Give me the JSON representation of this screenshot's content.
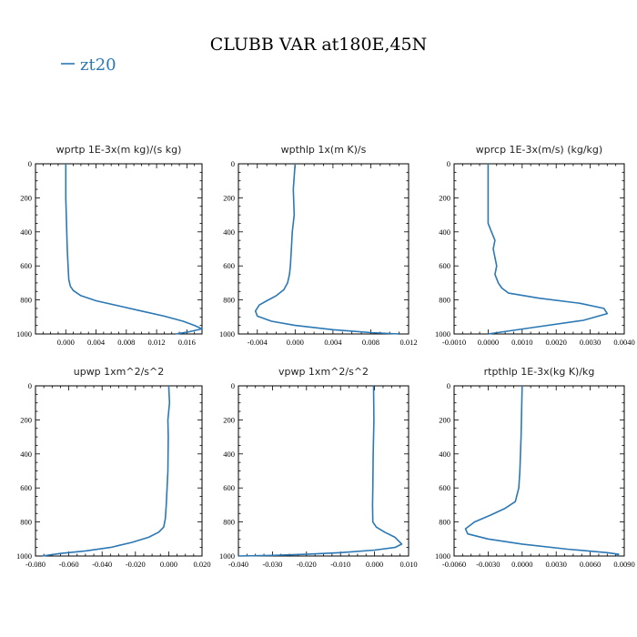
{
  "figure": {
    "title": "CLUBB VAR at180E,45N",
    "legend": [
      {
        "name": "zt20",
        "color": "#2b78b4"
      }
    ]
  },
  "chart_data": [
    {
      "type": "line",
      "title": "wprtp  1E-3x(m kg)/(s kg)",
      "xlim": [
        -0.004,
        0.018
      ],
      "xticks": [
        0.0,
        0.004,
        0.008,
        0.012,
        0.016
      ],
      "xtick_labels": [
        "0.000",
        "0.004",
        "0.008",
        "0.012",
        "0.016"
      ],
      "ylim": [
        1000,
        0
      ],
      "yticks": [
        0,
        200,
        400,
        600,
        800,
        1000
      ],
      "ytick_labels": [
        "0",
        "200",
        "400",
        "600",
        "800",
        "1000"
      ],
      "series": [
        {
          "name": "zt20",
          "color": "#2b78b4",
          "x": [
            0.0,
            0.0,
            0.0001,
            0.0002,
            0.0003,
            0.0004,
            0.0006,
            0.001,
            0.002,
            0.004,
            0.007,
            0.01,
            0.013,
            0.0155,
            0.017,
            0.018,
            0.016,
            0.0145
          ],
          "y": [
            0,
            200,
            350,
            500,
            600,
            680,
            720,
            745,
            775,
            805,
            835,
            865,
            895,
            925,
            950,
            970,
            990,
            1000
          ]
        }
      ]
    },
    {
      "type": "line",
      "title": "wpthlp  1x(m K)/s",
      "xlim": [
        -0.006,
        0.012
      ],
      "xticks": [
        -0.004,
        0.0,
        0.004,
        0.008,
        0.012
      ],
      "xtick_labels": [
        "-0.004",
        "0.000",
        "0.004",
        "0.008",
        "0.012"
      ],
      "ylim": [
        1000,
        0
      ],
      "yticks": [
        0,
        200,
        400,
        600,
        800,
        1000
      ],
      "ytick_labels": [
        "0",
        "200",
        "400",
        "600",
        "800",
        "1000"
      ],
      "series": [
        {
          "name": "zt20",
          "color": "#2b78b4",
          "x": [
            0.0,
            -0.0002,
            -0.0001,
            -0.0003,
            -0.0004,
            -0.0005,
            -0.0006,
            -0.0008,
            -0.0012,
            -0.002,
            -0.003,
            -0.0038,
            -0.0042,
            -0.004,
            -0.0025,
            0.0,
            0.004,
            0.008,
            0.011
          ],
          "y": [
            0,
            150,
            300,
            400,
            500,
            600,
            650,
            700,
            740,
            775,
            805,
            830,
            865,
            895,
            925,
            950,
            975,
            992,
            1000
          ]
        }
      ]
    },
    {
      "type": "line",
      "title": "wprcp  1E-3x(m/s) (kg/kg)",
      "xlim": [
        -0.001,
        0.004
      ],
      "xticks": [
        -0.001,
        0.0,
        0.001,
        0.002,
        0.003,
        0.004
      ],
      "xtick_labels": [
        "-0.0010",
        "0.0000",
        "0.0010",
        "0.0020",
        "0.0030",
        "0.0040"
      ],
      "ylim": [
        1000,
        0
      ],
      "yticks": [
        0,
        200,
        400,
        600,
        800,
        1000
      ],
      "ytick_labels": [
        "0",
        "200",
        "400",
        "600",
        "800",
        "1000"
      ],
      "series": [
        {
          "name": "zt20",
          "color": "#2b78b4",
          "x": [
            0.0,
            0.0,
            0.0001,
            0.0002,
            0.00015,
            0.0002,
            0.00025,
            0.0002,
            0.0003,
            0.0004,
            0.0006,
            0.0015,
            0.0027,
            0.0034,
            0.0035,
            0.0028,
            0.0012,
            0.0
          ],
          "y": [
            0,
            350,
            400,
            450,
            500,
            550,
            600,
            650,
            700,
            730,
            760,
            790,
            820,
            850,
            880,
            920,
            965,
            1000
          ]
        }
      ]
    },
    {
      "type": "line",
      "title": "upwp  1xm^2/s^2",
      "xlim": [
        -0.08,
        0.02
      ],
      "xticks": [
        -0.08,
        -0.06,
        -0.04,
        -0.02,
        0.0,
        0.02
      ],
      "xtick_labels": [
        "-0.080",
        "-0.060",
        "-0.040",
        "-0.020",
        "0.000",
        "0.020"
      ],
      "ylim": [
        1000,
        0
      ],
      "yticks": [
        0,
        200,
        400,
        600,
        800,
        1000
      ],
      "ytick_labels": [
        "0",
        "200",
        "400",
        "600",
        "800",
        "1000"
      ],
      "series": [
        {
          "name": "zt20",
          "color": "#2b78b4",
          "x": [
            0.0,
            0.0005,
            -0.0005,
            -0.0003,
            -0.0005,
            -0.001,
            -0.0015,
            -0.002,
            -0.003,
            -0.006,
            -0.012,
            -0.022,
            -0.035,
            -0.05,
            -0.065,
            -0.076
          ],
          "y": [
            0,
            100,
            200,
            300,
            500,
            600,
            700,
            780,
            830,
            860,
            890,
            920,
            950,
            970,
            985,
            1000
          ]
        }
      ]
    },
    {
      "type": "line",
      "title": "vpwp  1xm^2/s^2",
      "xlim": [
        -0.04,
        0.01
      ],
      "xticks": [
        -0.04,
        -0.03,
        -0.02,
        -0.01,
        0.0,
        0.01
      ],
      "xtick_labels": [
        "-0.040",
        "-0.030",
        "-0.020",
        "-0.010",
        "0.000",
        "0.010"
      ],
      "ylim": [
        1000,
        0
      ],
      "yticks": [
        0,
        200,
        400,
        600,
        800,
        1000
      ],
      "ytick_labels": [
        "0",
        "200",
        "400",
        "600",
        "800",
        "1000"
      ],
      "series": [
        {
          "name": "zt20",
          "color": "#2b78b4",
          "x": [
            -0.0003,
            -0.0002,
            -0.0004,
            -0.0005,
            -0.0006,
            -0.0005,
            0.0005,
            0.003,
            0.006,
            0.008,
            0.006,
            0.0,
            -0.01,
            -0.02,
            -0.03,
            -0.04
          ],
          "y": [
            0,
            200,
            400,
            600,
            700,
            800,
            830,
            860,
            890,
            930,
            950,
            965,
            980,
            990,
            996,
            1000
          ]
        }
      ]
    },
    {
      "type": "line",
      "title": "rtpthlp  1E-3x(kg K)/kg",
      "xlim": [
        -0.006,
        0.009
      ],
      "xticks": [
        -0.006,
        -0.003,
        0.0,
        0.003,
        0.006,
        0.009
      ],
      "xtick_labels": [
        "-0.0060",
        "-0.0030",
        "0.0000",
        "0.0030",
        "0.0060",
        "0.0090"
      ],
      "ylim": [
        1000,
        0
      ],
      "yticks": [
        0,
        200,
        400,
        600,
        800,
        1000
      ],
      "ytick_labels": [
        "0",
        "200",
        "400",
        "600",
        "800",
        "1000"
      ],
      "series": [
        {
          "name": "zt20",
          "color": "#2b78b4",
          "x": [
            0.0,
            -0.0001,
            -0.0002,
            -0.0003,
            -0.0006,
            -0.0015,
            -0.0028,
            -0.0042,
            -0.005,
            -0.0048,
            -0.003,
            0.0,
            0.004,
            0.0075,
            0.0085,
            0.0083
          ],
          "y": [
            0,
            300,
            500,
            600,
            680,
            720,
            760,
            800,
            840,
            870,
            900,
            930,
            960,
            980,
            990,
            1000
          ]
        }
      ]
    }
  ]
}
